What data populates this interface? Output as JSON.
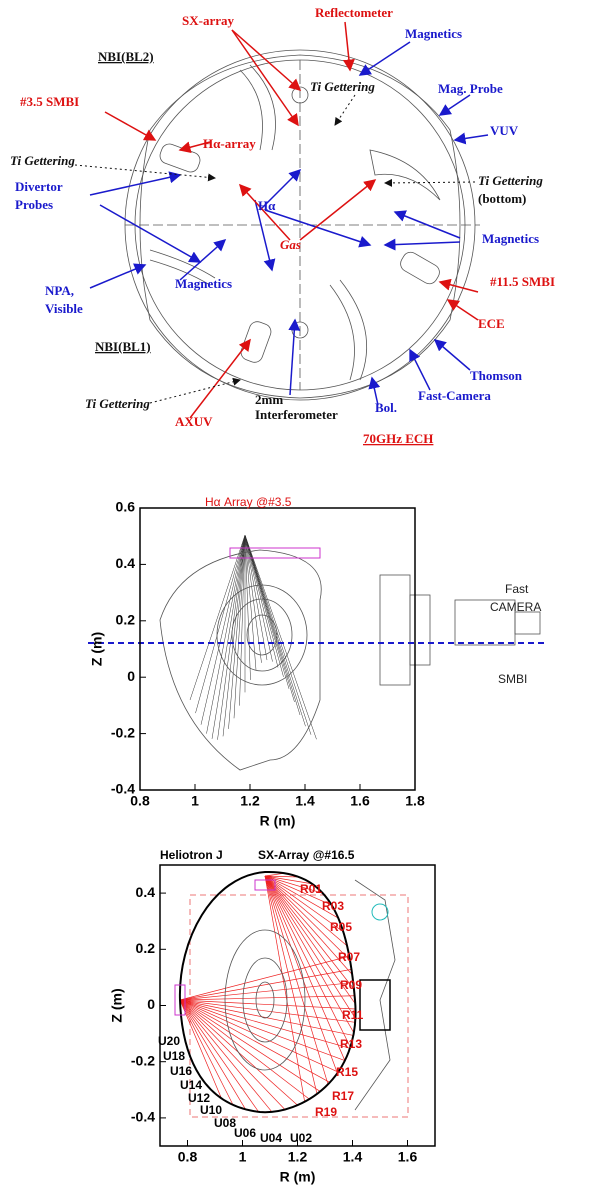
{
  "top": {
    "labels": [
      "SX-array",
      "Reflectometer",
      "Magnetics",
      "NBI(BL2)",
      "Ti Gettering",
      "Mag. Probe",
      "#3.5 SMBI",
      "Hα-array",
      "VUV",
      "Ti Gettering",
      "Ti Gettering",
      "(bottom)",
      "Divertor",
      "Probes",
      "Hα",
      "Magnetics",
      "Gas",
      "Magnetics",
      "#11.5 SMBI",
      "NPA,",
      "Visible",
      "ECE",
      "NBI(BL1)",
      "Thomson",
      "Fast-Camera",
      "Ti Gettering",
      "2mm",
      "Interferometer",
      "Bol.",
      "AXUV",
      "70GHz ECH"
    ]
  },
  "middle": {
    "title": "Hα  Array @#3.5",
    "xlabel": "R (m)",
    "ylabel": "Z (m)",
    "xlim": [
      0.8,
      1.8
    ],
    "ylim": [
      -0.4,
      0.6
    ],
    "xticks": [
      0.8,
      1,
      1.2,
      1.4,
      1.6,
      1.8
    ],
    "yticks": [
      0.6,
      0.4,
      0.2,
      0,
      -0.2,
      -0.4
    ],
    "annotations": [
      "Fast",
      "CAMERA",
      "SMBI"
    ]
  },
  "bottom": {
    "title": "Heliotron J",
    "subtitle": "SX-Array @#16.5",
    "xlabel": "R (m)",
    "ylabel": "Z (m)",
    "xlim": [
      0.7,
      1.7
    ],
    "ylim": [
      -0.5,
      0.5
    ],
    "xticks": [
      0.8,
      1,
      1.2,
      1.4,
      1.6
    ],
    "yticks": [
      0.4,
      0.2,
      0,
      -0.2,
      -0.4
    ],
    "r_channels": [
      "R01",
      "R03",
      "R05",
      "R07",
      "R09",
      "R11",
      "R13",
      "R15",
      "R17",
      "R19"
    ],
    "u_channels": [
      "U20",
      "U18",
      "U16",
      "U14",
      "U12",
      "U10",
      "U08",
      "U06",
      "U04",
      "U02"
    ]
  }
}
